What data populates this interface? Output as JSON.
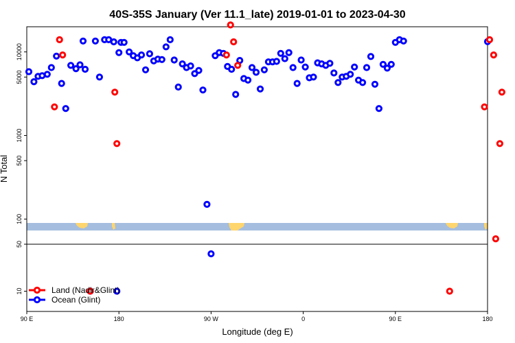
{
  "chart_data": {
    "type": "scatter",
    "title": "40S-35S January (Ver 11.1_late)   2019-01-01 to 2023-04-30",
    "xlabel": "Longitude (deg E)",
    "ylabel": "N Total",
    "x_scale": "longitude",
    "y_scale": "log",
    "y_scale_break": "above 50 log scale from 50 to 20000; below 50 log scale from 5 to 50",
    "x_ticks": [
      {
        "value": 90,
        "label": "90 E"
      },
      {
        "value": 180,
        "label": "180"
      },
      {
        "value": 270,
        "label": "90 W"
      },
      {
        "value": 360,
        "label": "0"
      },
      {
        "value": 450,
        "label": "90 E"
      },
      {
        "value": 540,
        "label": "180"
      }
    ],
    "y_ticks": [
      {
        "value": 10,
        "label": "10"
      },
      {
        "value": 50,
        "label": "50"
      },
      {
        "value": 100,
        "label": "100"
      },
      {
        "value": 500,
        "label": "500"
      },
      {
        "value": 1000,
        "label": "1000"
      },
      {
        "value": 5000,
        "label": "5000"
      },
      {
        "value": 10000,
        "label": "10000"
      }
    ],
    "legend": {
      "position": "bottom-left"
    },
    "series": [
      {
        "name": "Land (Nadir&Glint)",
        "color": "#ff0000",
        "points": [
          [
            117,
            2200
          ],
          [
            122,
            14000
          ],
          [
            125,
            9200
          ],
          [
            152,
            10
          ],
          [
            176,
            3300
          ],
          [
            178,
            800
          ],
          [
            285,
            9200
          ],
          [
            289,
            21000
          ],
          [
            292,
            13200
          ],
          [
            296,
            6900
          ],
          [
            503,
            10
          ],
          [
            537,
            2200
          ],
          [
            542,
            14000
          ],
          [
            546,
            9200
          ],
          [
            548,
            58
          ],
          [
            552,
            800
          ],
          [
            554,
            3300
          ]
        ]
      },
      {
        "name": "Ocean (Glint)",
        "color": "#0000ff",
        "points": [
          [
            92,
            5800
          ],
          [
            97,
            4400
          ],
          [
            101,
            5100
          ],
          [
            105,
            5200
          ],
          [
            110,
            5400
          ],
          [
            114,
            6500
          ],
          [
            119,
            8900
          ],
          [
            124,
            4200
          ],
          [
            128,
            2100
          ],
          [
            133,
            6900
          ],
          [
            138,
            6300
          ],
          [
            142,
            7000
          ],
          [
            145,
            13500
          ],
          [
            147,
            6200
          ],
          [
            152,
            10
          ],
          [
            157,
            13500
          ],
          [
            161,
            5000
          ],
          [
            166,
            14000
          ],
          [
            170,
            14000
          ],
          [
            175,
            13200
          ],
          [
            178,
            10
          ],
          [
            180,
            9800
          ],
          [
            182,
            13000
          ],
          [
            185,
            13000
          ],
          [
            190,
            10000
          ],
          [
            194,
            9000
          ],
          [
            198,
            8500
          ],
          [
            202,
            9200
          ],
          [
            206,
            6100
          ],
          [
            210,
            9500
          ],
          [
            214,
            7800
          ],
          [
            218,
            8200
          ],
          [
            222,
            8100
          ],
          [
            226,
            11500
          ],
          [
            230,
            14000
          ],
          [
            234,
            8000
          ],
          [
            238,
            3800
          ],
          [
            242,
            7200
          ],
          [
            246,
            6500
          ],
          [
            250,
            6800
          ],
          [
            254,
            5500
          ],
          [
            258,
            6000
          ],
          [
            262,
            3500
          ],
          [
            266,
            150
          ],
          [
            270,
            36
          ],
          [
            274,
            9000
          ],
          [
            278,
            9800
          ],
          [
            282,
            9600
          ],
          [
            286,
            6700
          ],
          [
            290,
            6200
          ],
          [
            294,
            3100
          ],
          [
            298,
            7900
          ],
          [
            302,
            4800
          ],
          [
            306,
            4600
          ],
          [
            310,
            6500
          ],
          [
            314,
            5700
          ],
          [
            318,
            3600
          ],
          [
            322,
            6100
          ],
          [
            326,
            7600
          ],
          [
            330,
            7600
          ],
          [
            334,
            7700
          ],
          [
            338,
            9600
          ],
          [
            342,
            8300
          ],
          [
            346,
            9800
          ],
          [
            350,
            6500
          ],
          [
            354,
            4200
          ],
          [
            358,
            8000
          ],
          [
            362,
            6600
          ],
          [
            366,
            4900
          ],
          [
            370,
            5000
          ],
          [
            374,
            7400
          ],
          [
            378,
            7200
          ],
          [
            382,
            6900
          ],
          [
            386,
            7300
          ],
          [
            390,
            5600
          ],
          [
            394,
            4300
          ],
          [
            398,
            5000
          ],
          [
            402,
            5100
          ],
          [
            406,
            5400
          ],
          [
            410,
            6600
          ],
          [
            414,
            4600
          ],
          [
            418,
            4300
          ],
          [
            422,
            6500
          ],
          [
            426,
            8800
          ],
          [
            430,
            4100
          ],
          [
            434,
            2100
          ],
          [
            438,
            7100
          ],
          [
            442,
            6400
          ],
          [
            446,
            7100
          ],
          [
            450,
            13000
          ],
          [
            454,
            14000
          ],
          [
            458,
            13500
          ],
          [
            540,
            13300
          ]
        ]
      }
    ]
  }
}
